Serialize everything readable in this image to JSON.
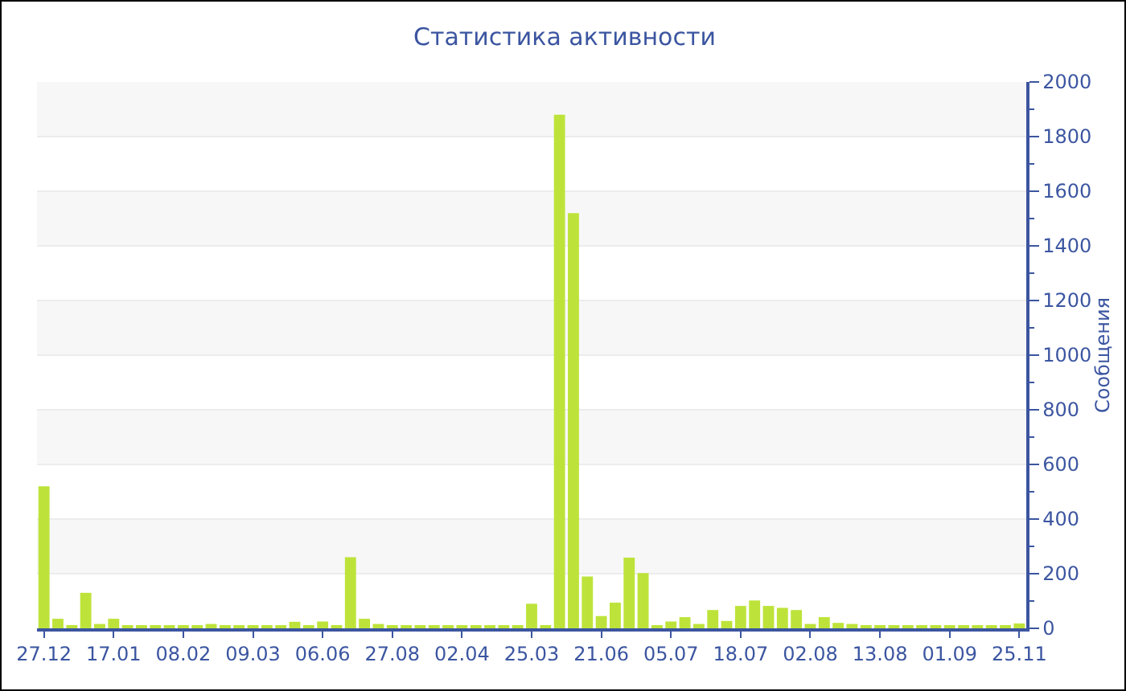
{
  "chart_data": {
    "type": "bar",
    "title": "Статистика активности",
    "ylabel": "Сообщения",
    "categories": [
      "27.12",
      null,
      null,
      null,
      null,
      "17.01",
      null,
      null,
      null,
      null,
      "08.02",
      null,
      null,
      null,
      null,
      "09.03",
      null,
      null,
      null,
      null,
      "06.06",
      null,
      null,
      null,
      null,
      "27.08",
      null,
      null,
      null,
      null,
      "02.04",
      null,
      null,
      null,
      null,
      "25.03",
      null,
      null,
      null,
      null,
      "21.06",
      null,
      null,
      null,
      null,
      "05.07",
      null,
      null,
      null,
      null,
      "18.07",
      null,
      null,
      null,
      null,
      "02.08",
      null,
      null,
      null,
      null,
      "13.08",
      null,
      null,
      null,
      null,
      "01.09",
      null,
      null,
      null,
      null,
      "25.11"
    ],
    "values": [
      520,
      35,
      12,
      130,
      16,
      35,
      10,
      10,
      8,
      6,
      6,
      8,
      16,
      6,
      6,
      10,
      6,
      8,
      24,
      6,
      25,
      12,
      260,
      35,
      16,
      8,
      8,
      8,
      6,
      10,
      10,
      6,
      10,
      6,
      10,
      90,
      8,
      1880,
      1520,
      190,
      45,
      94,
      259,
      202,
      10,
      25,
      41,
      16,
      67,
      27,
      82,
      102,
      82,
      75,
      67,
      16,
      41,
      20,
      16,
      8,
      10,
      8,
      6,
      6,
      6,
      6,
      10,
      8,
      8,
      10,
      18
    ],
    "color": "#bde33a",
    "ylim": [
      0,
      2000
    ],
    "yticks": [
      0,
      {
        "value": 100,
        "label": null
      },
      200,
      {
        "value": 300,
        "label": null
      },
      400,
      {
        "value": 500,
        "label": null
      },
      600,
      {
        "value": 700,
        "label": null
      },
      800,
      {
        "value": 900,
        "label": null
      },
      1000,
      {
        "value": 1100,
        "label": null
      },
      1200,
      {
        "value": 1300,
        "label": null
      },
      1400,
      {
        "value": 1500,
        "label": null
      },
      1600,
      {
        "value": 1700,
        "label": null
      },
      1800,
      {
        "value": 1900,
        "label": null
      },
      2000
    ],
    "grid": true
  }
}
